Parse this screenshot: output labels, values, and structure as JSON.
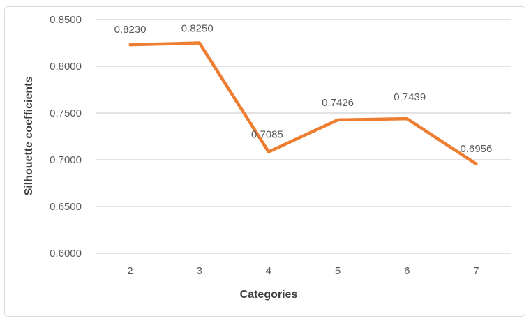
{
  "chart_data": {
    "type": "line",
    "xlabel": "Categories",
    "ylabel": "Silhouette coefficients",
    "categories": [
      "2",
      "3",
      "4",
      "5",
      "6",
      "7"
    ],
    "series": [
      {
        "name": "Silhouette coefficients",
        "values": [
          0.823,
          0.825,
          0.7085,
          0.7426,
          0.7439,
          0.6956
        ]
      }
    ],
    "point_labels": [
      "0.8230",
      "0.8250",
      "0.7085",
      "0.7426",
      "0.7439",
      "0.6956"
    ],
    "ytick_labels": [
      "0.8500",
      "0.8000",
      "0.7500",
      "0.7000",
      "0.6500",
      "0.6000"
    ],
    "ylim": [
      0.6,
      0.85
    ],
    "ytick_step": 0.05,
    "grid": true,
    "legend": "none",
    "colors": {
      "line": "#ED7D31",
      "gridline": "#D9D9D9",
      "tick_text": "#595959",
      "data_label_text": "#595959",
      "axis_title_text": "#404040",
      "chart_border": "#D9D9D9",
      "background": "#FFFFFF"
    }
  }
}
